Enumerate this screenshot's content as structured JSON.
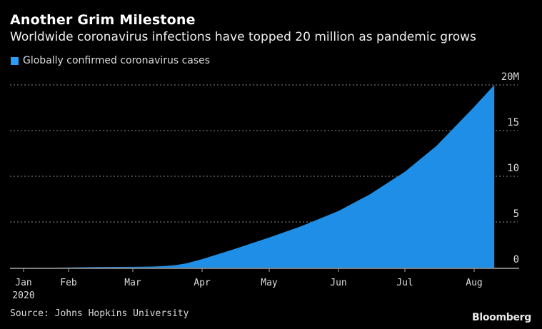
{
  "header": {
    "title": "Another Grim Milestone",
    "subtitle": "Worldwide coronavirus infections have topped 20 million as pandemic grows"
  },
  "footer": {
    "source": "Source: Johns Hopkins University",
    "brand": "Bloomberg"
  },
  "chart_data": {
    "type": "area",
    "title": "Another Grim Milestone",
    "subtitle": "Worldwide coronavirus infections have topped 20 million as pandemic grows",
    "xlabel": "",
    "ylabel": "",
    "legend": {
      "position": "top-left",
      "entries": [
        {
          "name": "Globally confirmed coronavirus cases",
          "color": "#2a9df4"
        }
      ]
    },
    "grid": true,
    "ylim": [
      0,
      20
    ],
    "y_unit": "M",
    "y_ticks": [
      {
        "value": 0,
        "label": "0"
      },
      {
        "value": 5,
        "label": "5"
      },
      {
        "value": 10,
        "label": "10"
      },
      {
        "value": 15,
        "label": "15"
      },
      {
        "value": 20,
        "label": "20M"
      }
    ],
    "x_ticks": [
      {
        "date": "2020-01-01",
        "label": "Jan",
        "sublabel": "2020"
      },
      {
        "date": "2020-02-01",
        "label": "Feb"
      },
      {
        "date": "2020-03-01",
        "label": "Mar"
      },
      {
        "date": "2020-04-01",
        "label": "Apr"
      },
      {
        "date": "2020-05-01",
        "label": "May"
      },
      {
        "date": "2020-06-01",
        "label": "Jun"
      },
      {
        "date": "2020-07-01",
        "label": "Jul"
      },
      {
        "date": "2020-08-01",
        "label": "Aug"
      }
    ],
    "series": [
      {
        "name": "Globally confirmed coronavirus cases",
        "color": "#1e8ee6",
        "points": [
          {
            "x": "2020-01-22",
            "y": 0.0006
          },
          {
            "x": "2020-02-01",
            "y": 0.012
          },
          {
            "x": "2020-02-15",
            "y": 0.069
          },
          {
            "x": "2020-03-01",
            "y": 0.088
          },
          {
            "x": "2020-03-10",
            "y": 0.12
          },
          {
            "x": "2020-03-15",
            "y": 0.17
          },
          {
            "x": "2020-03-20",
            "y": 0.27
          },
          {
            "x": "2020-03-25",
            "y": 0.47
          },
          {
            "x": "2020-04-01",
            "y": 0.93
          },
          {
            "x": "2020-04-15",
            "y": 2.0
          },
          {
            "x": "2020-05-01",
            "y": 3.3
          },
          {
            "x": "2020-05-15",
            "y": 4.5
          },
          {
            "x": "2020-06-01",
            "y": 6.2
          },
          {
            "x": "2020-06-15",
            "y": 8.0
          },
          {
            "x": "2020-07-01",
            "y": 10.5
          },
          {
            "x": "2020-07-15",
            "y": 13.3
          },
          {
            "x": "2020-08-01",
            "y": 17.6
          },
          {
            "x": "2020-08-10",
            "y": 20.0
          }
        ]
      }
    ]
  }
}
